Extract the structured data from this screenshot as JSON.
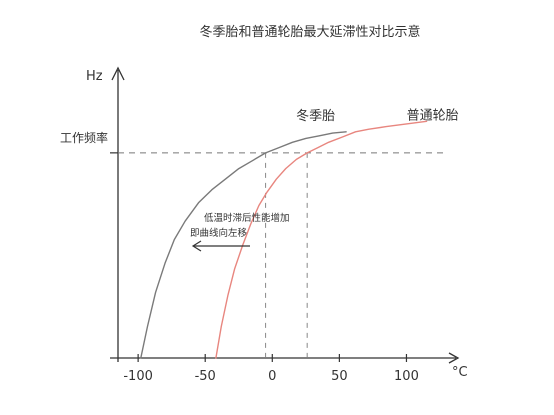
{
  "chart_data": {
    "type": "line",
    "title": "冬季胎和普通轮胎最大延滞性对比示意",
    "xlabel": "°C",
    "ylabel": "Hz",
    "xlim": [
      -115,
      125
    ],
    "ylim": [
      0,
      100
    ],
    "x_ticks": [
      -100,
      -50,
      0,
      50,
      100
    ],
    "x_tick_labels": [
      "-100",
      "-50",
      "0",
      "50",
      "100"
    ],
    "reference_line": {
      "label": "工作频率",
      "y": 78
    },
    "series": [
      {
        "name": "冬季胎",
        "color": "#7a7a7a",
        "x": [
          -98,
          -93,
          -87,
          -80,
          -73,
          -65,
          -55,
          -45,
          -35,
          -25,
          -15,
          -5,
          5,
          15,
          25,
          35,
          45,
          55
        ],
        "y": [
          0,
          12,
          25,
          36,
          45,
          52,
          59,
          64,
          68,
          72,
          75,
          78,
          80,
          82,
          83.5,
          84.5,
          85.5,
          86
        ]
      },
      {
        "name": "普通轮胎",
        "color": "#e8867f",
        "x": [
          -42,
          -38,
          -33,
          -28,
          -22,
          -16,
          -10,
          -4,
          3,
          10,
          18,
          26,
          34,
          42,
          52,
          62,
          72,
          85,
          100,
          115
        ],
        "y": [
          0,
          12,
          24,
          34,
          43,
          51,
          58,
          63,
          68,
          72,
          75.5,
          78,
          80,
          82,
          84,
          86,
          87,
          88,
          89,
          90
        ]
      }
    ],
    "annotation": {
      "lines": [
        "低温时滞后性能增加",
        "即曲线向左移"
      ],
      "arrow": "left"
    }
  }
}
